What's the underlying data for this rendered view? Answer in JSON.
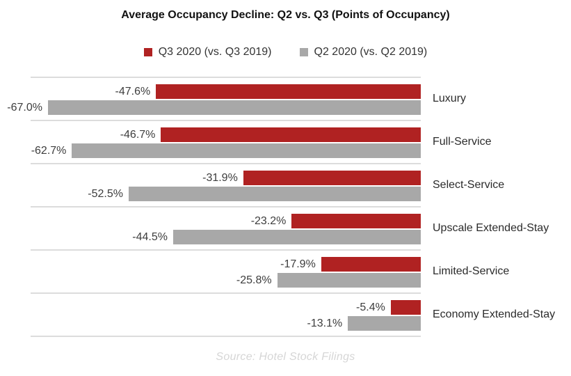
{
  "title": "Average Occupancy Decline: Q2 vs. Q3 (Points of Occupancy)",
  "legend": [
    {
      "label": "Q3 2020 (vs. Q3 2019)",
      "color": "#B02222"
    },
    {
      "label": "Q2 2020 (vs. Q2 2019)",
      "color": "#A8A8A8"
    }
  ],
  "source": "Source: Hotel Stock Filings",
  "colors": {
    "q3_bar": "#B02222",
    "q2_bar": "#A8A8A8",
    "separator_line": "#DCDCDC",
    "value_label": "#3D3D3D",
    "category_label": "#2B2B2B",
    "source_text": "#D6D6D6"
  },
  "chart_data": {
    "type": "bar",
    "orientation": "horizontal",
    "title": "Average Occupancy Decline: Q2 vs. Q3 (Points of Occupancy)",
    "categories": [
      "Luxury",
      "Full-Service",
      "Select-Service",
      "Upscale Extended-Stay",
      "Limited-Service",
      "Economy Extended-Stay"
    ],
    "series": [
      {
        "name": "Q3 2020 (vs. Q3 2019)",
        "color": "#B02222",
        "values": [
          -47.6,
          -46.7,
          -31.9,
          -23.2,
          -17.9,
          -5.4
        ],
        "labels": [
          "-47.6%",
          "-46.7%",
          "-31.9%",
          "-23.2%",
          "-17.9%",
          "-5.4%"
        ]
      },
      {
        "name": "Q2 2020 (vs. Q2 2019)",
        "color": "#A8A8A8",
        "values": [
          -67.0,
          -62.7,
          -52.5,
          -44.5,
          -25.8,
          -13.1
        ],
        "labels": [
          "-67.0%",
          "-62.7%",
          "-52.5%",
          "-44.5%",
          "-25.8%",
          "-13.1%"
        ]
      }
    ],
    "xlim": [
      -70,
      0
    ],
    "value_axis_hidden": true,
    "gridlines": "horizontal category separators only",
    "legend_position": "top",
    "data_labels": "outside end (left of bars)",
    "source_note": "Source: Hotel Stock Filings"
  }
}
